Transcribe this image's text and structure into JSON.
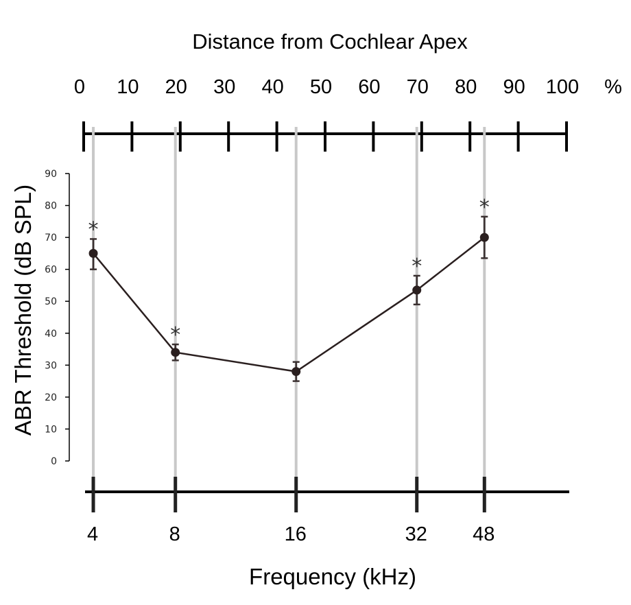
{
  "chart_data": {
    "type": "line",
    "top_axis": {
      "title": "Distance from Cochlear Apex",
      "ticks": [
        "0",
        "10",
        "20",
        "30",
        "40",
        "50",
        "60",
        "70",
        "80",
        "90",
        "100"
      ],
      "unit": "%",
      "range": [
        0,
        100
      ]
    },
    "x": [
      "4",
      "8",
      "16",
      "32",
      "48"
    ],
    "xlabel": "Frequency (kHz)",
    "ylabel": "ABR Threshold (dB SPL)",
    "ylim": [
      0,
      90
    ],
    "y_ticks": [
      "0",
      "10",
      "20",
      "30",
      "40",
      "50",
      "60",
      "70",
      "80",
      "90"
    ],
    "frequency_position_percent": [
      1,
      18,
      43,
      68,
      82
    ],
    "series": [
      {
        "values": [
          65,
          34,
          28,
          53.5,
          70
        ],
        "error_upper": [
          69.5,
          36.5,
          31,
          58,
          76.5
        ],
        "error_lower": [
          60,
          31.5,
          25,
          49,
          63.5
        ],
        "significance": [
          "*",
          "*",
          "",
          "*",
          "*"
        ]
      }
    ],
    "vertical_guides": true,
    "colors": {
      "line": "#2a1f1f",
      "guide": "#c8c8c8",
      "axis": "#000000"
    }
  }
}
